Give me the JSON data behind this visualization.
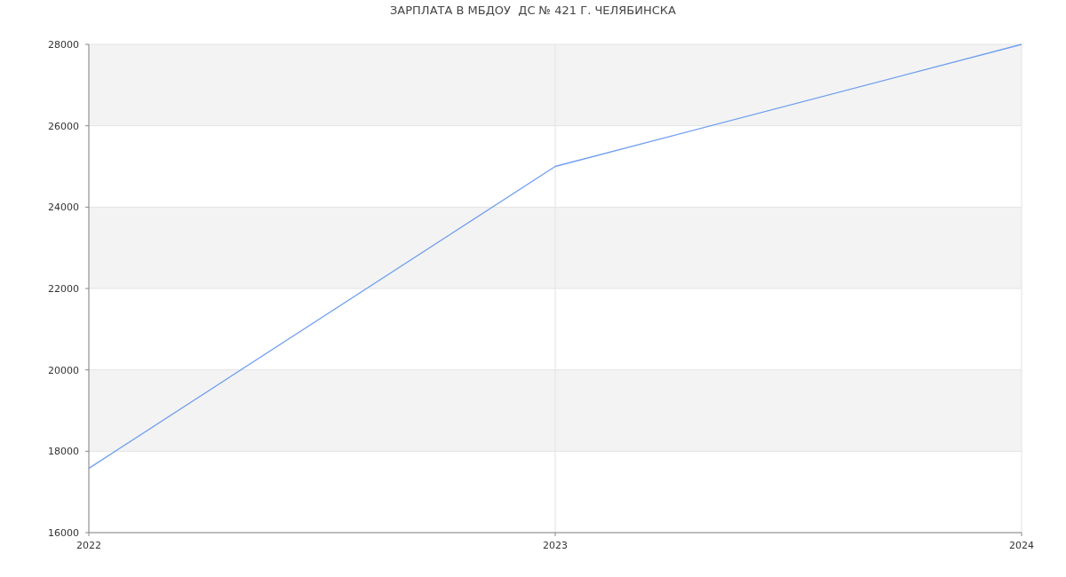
{
  "chart_data": {
    "type": "line",
    "title": "ЗАРПЛАТА В МБДОУ  ДС № 421 Г. ЧЕЛЯБИНСКА",
    "x": [
      "2022",
      "2023",
      "2024"
    ],
    "series": [
      {
        "color": "#6f9ef0",
        "values": [
          17580,
          25000,
          28000
        ]
      }
    ],
    "xlim": [
      "2022",
      "2024"
    ],
    "xticks": [
      {
        "value": "2022",
        "label": "2022"
      },
      {
        "value": "2023",
        "label": "2023"
      },
      {
        "value": "2024",
        "label": "2024"
      }
    ],
    "ylim": [
      16000,
      28000
    ],
    "yticks": [
      16000,
      18000,
      20000,
      22000,
      24000,
      26000,
      28000
    ],
    "grid": true,
    "marker": "none",
    "line_style": "solid"
  }
}
